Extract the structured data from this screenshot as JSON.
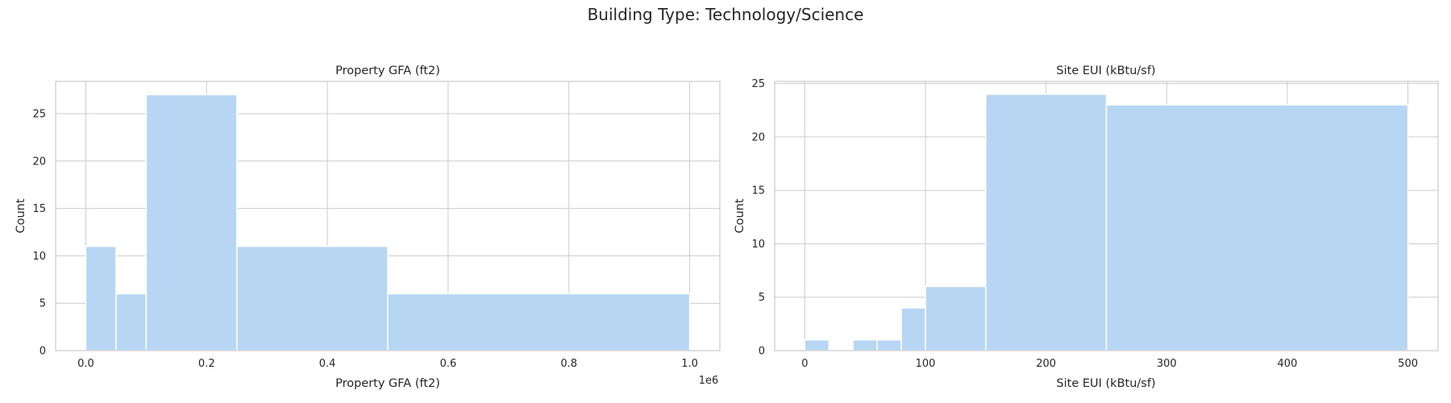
{
  "figure": {
    "suptitle": "Building Type: Technology/Science"
  },
  "chart_data": [
    {
      "type": "bar",
      "subtype": "histogram",
      "title": "Property GFA (ft2)",
      "xlabel": "Property GFA (ft2)",
      "ylabel": "Count",
      "x_offset_label": "1e6",
      "xlim": [
        -0.05,
        1.05
      ],
      "ylim": [
        0,
        28.4
      ],
      "xticks": [
        0.0,
        0.2,
        0.4,
        0.6,
        0.8,
        1.0
      ],
      "xtick_labels": [
        "0.0",
        "0.2",
        "0.4",
        "0.6",
        "0.8",
        "1.0"
      ],
      "yticks": [
        0,
        5,
        10,
        15,
        20,
        25
      ],
      "ytick_labels": [
        "0",
        "5",
        "10",
        "15",
        "20",
        "25"
      ],
      "grid": true,
      "color": "#b7d6f4",
      "bins": [
        {
          "x0": 0.0,
          "x1": 0.05,
          "count": 11
        },
        {
          "x0": 0.05,
          "x1": 0.1,
          "count": 6
        },
        {
          "x0": 0.1,
          "x1": 0.25,
          "count": 27
        },
        {
          "x0": 0.25,
          "x1": 0.5,
          "count": 11
        },
        {
          "x0": 0.5,
          "x1": 1.0,
          "count": 6
        }
      ]
    },
    {
      "type": "bar",
      "subtype": "histogram",
      "title": "Site EUI (kBtu/sf)",
      "xlabel": "Site EUI (kBtu/sf)",
      "ylabel": "Count",
      "xlim": [
        -25,
        525
      ],
      "ylim": [
        0,
        25.2
      ],
      "xticks": [
        0,
        100,
        200,
        300,
        400,
        500
      ],
      "xtick_labels": [
        "0",
        "100",
        "200",
        "300",
        "400",
        "500"
      ],
      "yticks": [
        0,
        5,
        10,
        15,
        20,
        25
      ],
      "ytick_labels": [
        "0",
        "5",
        "10",
        "15",
        "20",
        "25"
      ],
      "grid": true,
      "color": "#b7d6f4",
      "bins": [
        {
          "x0": 0,
          "x1": 20,
          "count": 1
        },
        {
          "x0": 40,
          "x1": 60,
          "count": 1
        },
        {
          "x0": 60,
          "x1": 80,
          "count": 1
        },
        {
          "x0": 80,
          "x1": 100,
          "count": 4
        },
        {
          "x0": 100,
          "x1": 150,
          "count": 6
        },
        {
          "x0": 150,
          "x1": 250,
          "count": 24
        },
        {
          "x0": 250,
          "x1": 500,
          "count": 23
        }
      ]
    }
  ]
}
